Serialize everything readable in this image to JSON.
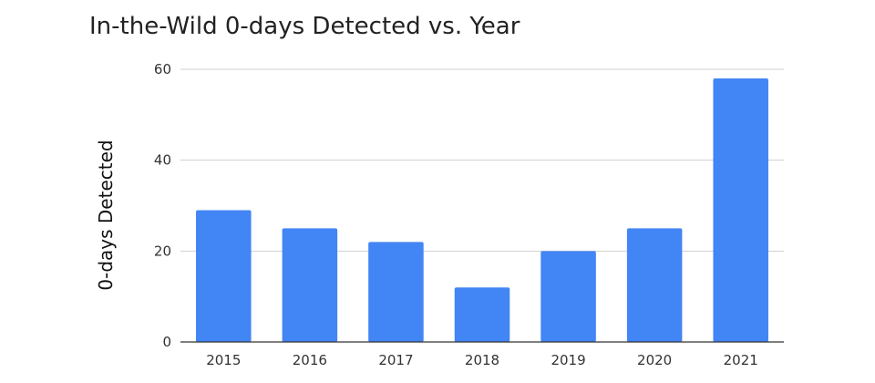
{
  "chart_data": {
    "type": "bar",
    "title": "In-the-Wild 0-days Detected vs. Year",
    "xlabel": "",
    "ylabel": "0-days Detected",
    "categories": [
      "2015",
      "2016",
      "2017",
      "2018",
      "2019",
      "2020",
      "2021"
    ],
    "values": [
      29,
      25,
      22,
      12,
      20,
      25,
      58
    ],
    "ylim": [
      0,
      60
    ],
    "yticks": [
      0,
      20,
      40,
      60
    ],
    "grid": true,
    "legend": "none",
    "colors": {
      "bar": "#4285f4",
      "grid": "#d0d0d0",
      "axis": "#333333"
    }
  }
}
